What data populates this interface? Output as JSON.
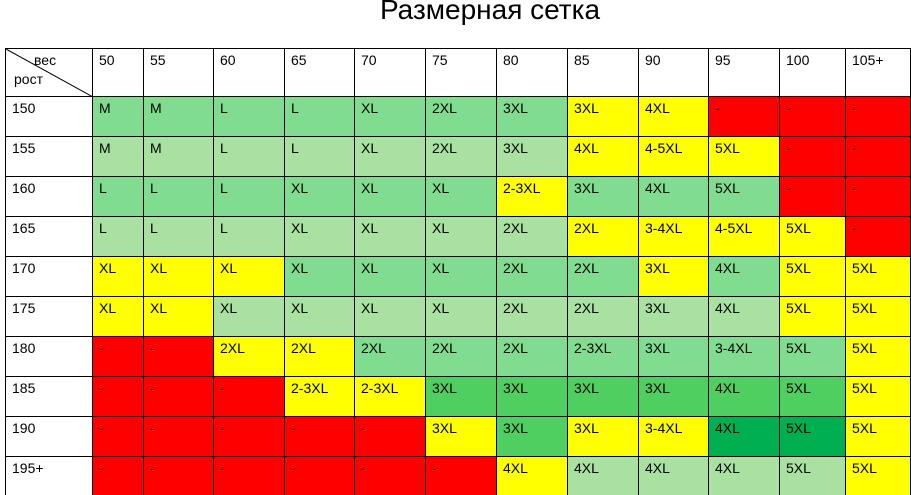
{
  "title": "Размерная сетка",
  "corner": {
    "top": "вес",
    "bottom": "рост"
  },
  "columns": [
    "50",
    "55",
    "60",
    "65",
    "70",
    "75",
    "80",
    "85",
    "90",
    "95",
    "100",
    "105+"
  ],
  "rows": [
    {
      "label": "150",
      "cells": [
        "M",
        "M",
        "L",
        "L",
        "XL",
        "2XL",
        "3XL",
        "3XL",
        "4XL",
        "-",
        "-",
        "-"
      ],
      "fills": [
        "#80dd8f",
        "#80dd8f",
        "#80dd8f",
        "#80dd8f",
        "#80dd8f",
        "#80dd8f",
        "#80dd8f",
        "#ffff00",
        "#ffff00",
        "#ff0000",
        "#ff0000",
        "#ff0000"
      ]
    },
    {
      "label": "155",
      "cells": [
        "M",
        "M",
        "L",
        "L",
        "XL",
        "2XL",
        "3XL",
        "4XL",
        "4-5XL",
        "5XL",
        "-",
        "-"
      ],
      "fills": [
        "#a9e2a0",
        "#a9e2a0",
        "#a9e2a0",
        "#a9e2a0",
        "#a9e2a0",
        "#a9e2a0",
        "#a9e2a0",
        "#ffff00",
        "#ffff00",
        "#ffff00",
        "#ff0000",
        "#ff0000"
      ]
    },
    {
      "label": "160",
      "cells": [
        "L",
        "L",
        "L",
        "XL",
        "XL",
        "XL",
        "2-3XL",
        "3XL",
        "4XL",
        "5XL",
        "-",
        "-"
      ],
      "fills": [
        "#80dd8f",
        "#80dd8f",
        "#80dd8f",
        "#80dd8f",
        "#80dd8f",
        "#80dd8f",
        "#ffff00",
        "#80dd8f",
        "#80dd8f",
        "#80dd8f",
        "#ff0000",
        "#ff0000"
      ]
    },
    {
      "label": "165",
      "cells": [
        "L",
        "L",
        "L",
        "XL",
        "XL",
        "XL",
        "2XL",
        "2XL",
        "3-4XL",
        "4-5XL",
        "5XL",
        "-"
      ],
      "fills": [
        "#a9e2a0",
        "#a9e2a0",
        "#a9e2a0",
        "#a9e2a0",
        "#a9e2a0",
        "#a9e2a0",
        "#a9e2a0",
        "#ffff00",
        "#ffff00",
        "#ffff00",
        "#ffff00",
        "#ff0000"
      ]
    },
    {
      "label": "170",
      "cells": [
        "XL",
        "XL",
        "XL",
        "XL",
        "XL",
        "XL",
        "2XL",
        "2XL",
        "3XL",
        "4XL",
        "5XL",
        "5XL"
      ],
      "fills": [
        "#ffff00",
        "#ffff00",
        "#ffff00",
        "#80dd8f",
        "#80dd8f",
        "#80dd8f",
        "#80dd8f",
        "#80dd8f",
        "#ffff00",
        "#80dd8f",
        "#ffff00",
        "#ffff00"
      ]
    },
    {
      "label": "175",
      "cells": [
        "XL",
        "XL",
        "XL",
        "XL",
        "XL",
        "XL",
        "2XL",
        "2XL",
        "3XL",
        "4XL",
        "5XL",
        "5XL"
      ],
      "fills": [
        "#ffff00",
        "#ffff00",
        "#a9e2a0",
        "#a9e2a0",
        "#a9e2a0",
        "#a9e2a0",
        "#a9e2a0",
        "#a9e2a0",
        "#a9e2a0",
        "#a9e2a0",
        "#ffff00",
        "#ffff00"
      ]
    },
    {
      "label": "180",
      "cells": [
        "-",
        "-",
        "2XL",
        "2XL",
        "2XL",
        "2XL",
        "2XL",
        "2-3XL",
        "3XL",
        "3-4XL",
        "5XL",
        "5XL"
      ],
      "fills": [
        "#ff0000",
        "#ff0000",
        "#ffff00",
        "#ffff00",
        "#80dd8f",
        "#80dd8f",
        "#80dd8f",
        "#80dd8f",
        "#80dd8f",
        "#80dd8f",
        "#80dd8f",
        "#ffff00"
      ]
    },
    {
      "label": "185",
      "cells": [
        "-",
        "-",
        "-",
        "2-3XL",
        "2-3XL",
        "3XL",
        "3XL",
        "3XL",
        "3XL",
        "4XL",
        "5XL",
        "5XL"
      ],
      "fills": [
        "#ff0000",
        "#ff0000",
        "#ff0000",
        "#ffff00",
        "#ffff00",
        "#4ecf5f",
        "#4ecf5f",
        "#4ecf5f",
        "#4ecf5f",
        "#4ecf5f",
        "#4ecf5f",
        "#ffff00"
      ]
    },
    {
      "label": "190",
      "cells": [
        "-",
        "-",
        "-",
        "-",
        "-",
        "3XL",
        "3XL",
        "3XL",
        "3-4XL",
        "4XL",
        "5XL",
        "5XL"
      ],
      "fills": [
        "#ff0000",
        "#ff0000",
        "#ff0000",
        "#ff0000",
        "#ff0000",
        "#ffff00",
        "#4ecf5f",
        "#ffff00",
        "#ffff00",
        "#00b050",
        "#00b050",
        "#ffff00"
      ]
    },
    {
      "label": "195+",
      "cells": [
        "-",
        "-",
        "-",
        "-",
        "-",
        "-",
        "4XL",
        "4XL",
        "4XL",
        "4XL",
        "5XL",
        "5XL"
      ],
      "fills": [
        "#ff0000",
        "#ff0000",
        "#ff0000",
        "#ff0000",
        "#ff0000",
        "#ff0000",
        "#ffff00",
        "#a9e2a0",
        "#a9e2a0",
        "#a9e2a0",
        "#a9e2a0",
        "#ffff00"
      ]
    }
  ]
}
